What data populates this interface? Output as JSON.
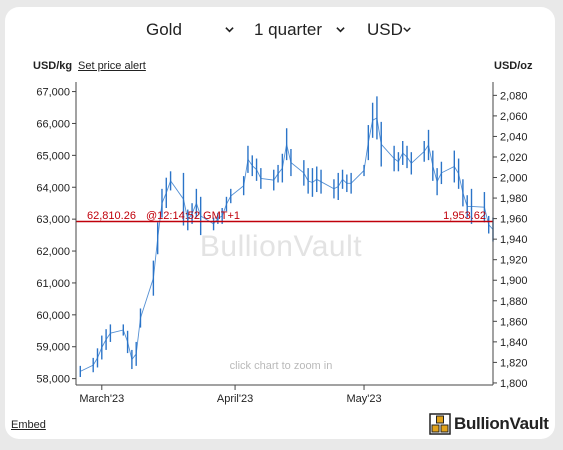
{
  "controls": {
    "metal": "Gold",
    "period": "1 quarter",
    "currency": "USD"
  },
  "header": {
    "left_unit": "USD/kg",
    "price_alert": "Set price alert",
    "right_unit": "USD/oz"
  },
  "chart_data": {
    "type": "line",
    "style": "high-low bars",
    "watermark": "BullionVault",
    "hint": "click chart to zoom in",
    "x": {
      "domain": [
        "2023-02-23",
        "2023-05-31"
      ],
      "tick_labels": [
        {
          "date": "2023-03-01",
          "label": "March'23"
        },
        {
          "date": "2023-04-01",
          "label": "April'23"
        },
        {
          "date": "2023-05-01",
          "label": "May'23"
        }
      ]
    },
    "y_left": {
      "unit": "USD/kg",
      "ylim": [
        57800,
        67300
      ],
      "ticks": [
        "58,000",
        "59,000",
        "60,000",
        "61,000",
        "62,000",
        "63,000",
        "64,000",
        "65,000",
        "66,000",
        "67,000"
      ]
    },
    "y_right": {
      "unit": "USD/oz",
      "ylim": [
        1798,
        2093
      ],
      "ticks": [
        "1,800",
        "1,820",
        "1,840",
        "1,860",
        "1,880",
        "1,900",
        "1,920",
        "1,940",
        "1,960",
        "1,980",
        "2,000",
        "2,020",
        "2,040",
        "2,060",
        "2,080"
      ]
    },
    "current": {
      "usd_kg": 62810.26,
      "usd_oz": 1953.62,
      "label_left": "62,810.26",
      "label_time": "@12:14:52 GMT+1",
      "label_right": "1,953.62"
    },
    "grid": false,
    "series": [
      {
        "unit": "USD/kg",
        "color": "#2b74c8",
        "x": [
          "2023-02-24",
          "2023-02-27",
          "2023-02-28",
          "2023-03-01",
          "2023-03-02",
          "2023-03-03",
          "2023-03-06",
          "2023-03-07",
          "2023-03-08",
          "2023-03-09",
          "2023-03-10",
          "2023-03-13",
          "2023-03-14",
          "2023-03-15",
          "2023-03-16",
          "2023-03-17",
          "2023-03-20",
          "2023-03-21",
          "2023-03-22",
          "2023-03-23",
          "2023-03-24",
          "2023-03-27",
          "2023-03-28",
          "2023-03-29",
          "2023-03-30",
          "2023-03-31",
          "2023-04-03",
          "2023-04-04",
          "2023-04-05",
          "2023-04-06",
          "2023-04-07",
          "2023-04-10",
          "2023-04-11",
          "2023-04-12",
          "2023-04-13",
          "2023-04-14",
          "2023-04-17",
          "2023-04-18",
          "2023-04-19",
          "2023-04-20",
          "2023-04-21",
          "2023-04-24",
          "2023-04-25",
          "2023-04-26",
          "2023-04-27",
          "2023-04-28",
          "2023-05-01",
          "2023-05-02",
          "2023-05-03",
          "2023-05-04",
          "2023-05-05",
          "2023-05-08",
          "2023-05-09",
          "2023-05-10",
          "2023-05-11",
          "2023-05-12",
          "2023-05-15",
          "2023-05-16",
          "2023-05-17",
          "2023-05-18",
          "2023-05-19",
          "2023-05-22",
          "2023-05-23",
          "2023-05-24",
          "2023-05-25",
          "2023-05-26",
          "2023-05-29",
          "2023-05-30",
          "2023-05-31"
        ],
        "high": [
          58400,
          58650,
          58950,
          59350,
          59550,
          59700,
          59700,
          59500,
          58900,
          59150,
          60200,
          61700,
          62900,
          63950,
          64300,
          64500,
          64450,
          63300,
          63500,
          63950,
          63700,
          63050,
          63200,
          63350,
          63700,
          63950,
          64350,
          65300,
          65000,
          64900,
          64600,
          64550,
          64700,
          65050,
          65850,
          65200,
          64850,
          64600,
          64600,
          64650,
          64550,
          64250,
          64450,
          64550,
          64400,
          64450,
          64700,
          65950,
          66650,
          66850,
          66050,
          65300,
          65100,
          65450,
          65300,
          65100,
          65450,
          65800,
          65150,
          64600,
          64800,
          65150,
          64900,
          64250,
          63750,
          63950,
          63850,
          63100,
          63050
        ],
        "low": [
          58050,
          58200,
          58350,
          58600,
          58900,
          59150,
          59350,
          58800,
          58300,
          58400,
          59600,
          60600,
          61900,
          63050,
          63350,
          63900,
          62800,
          62650,
          62850,
          63050,
          62500,
          62650,
          62850,
          62850,
          63250,
          63500,
          63750,
          64450,
          64350,
          64200,
          63950,
          63900,
          64150,
          64150,
          64850,
          64350,
          64050,
          63800,
          63700,
          63850,
          63800,
          63650,
          63600,
          63950,
          63850,
          63800,
          64350,
          64850,
          65550,
          65500,
          64650,
          64500,
          64500,
          64700,
          64600,
          64400,
          64800,
          64850,
          64200,
          63750,
          64100,
          64150,
          63950,
          63400,
          63050,
          62850,
          62900,
          62550,
          62300
        ]
      }
    ]
  },
  "footer": {
    "embed": "Embed",
    "brand": "BullionVault"
  }
}
